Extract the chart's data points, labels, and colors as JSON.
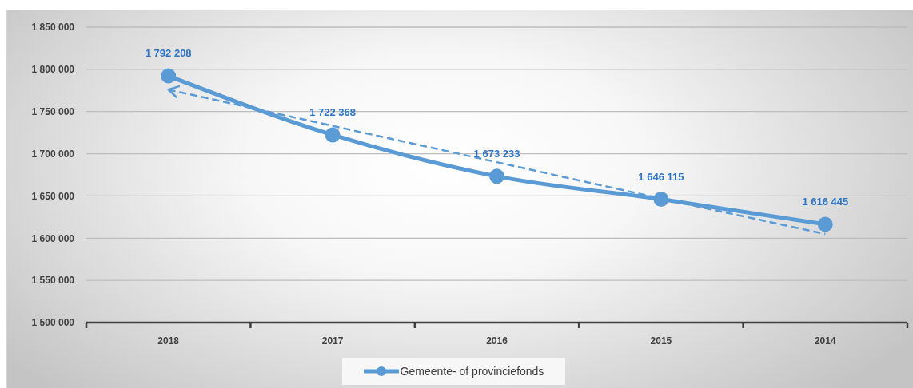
{
  "chart_data": {
    "type": "line",
    "categories": [
      "2018",
      "2017",
      "2016",
      "2015",
      "2014"
    ],
    "series": [
      {
        "name": "Gemeente- of provinciefonds",
        "color": "#5b9bd5",
        "values": [
          1792208,
          1722368,
          1673233,
          1646115,
          1616445
        ],
        "value_labels": [
          "1 792 208",
          "1 722 368",
          "1 673 233",
          "1 646 115",
          "1 616 445"
        ],
        "marker": "circle",
        "line_style": "solid"
      },
      {
        "type": "line",
        "color": "#5b9bd5",
        "values": [
          1776000,
          1733000,
          1690000,
          1647000,
          1605000
        ],
        "marker": "none",
        "line_style": "dashed"
      }
    ],
    "ylim": [
      1500000,
      1850000
    ],
    "yticks": [
      {
        "value": 1500000,
        "label": "1 500 000"
      },
      {
        "value": 1550000,
        "label": "1 550 000"
      },
      {
        "value": 1600000,
        "label": "1 600 000"
      },
      {
        "value": 1650000,
        "label": "1 650 000"
      },
      {
        "value": 1700000,
        "label": "1 700 000"
      },
      {
        "value": 1750000,
        "label": "1 750 000"
      },
      {
        "value": 1800000,
        "label": "1 800 000"
      },
      {
        "value": 1850000,
        "label": "1 850 000"
      }
    ],
    "grid": "y",
    "legend": "bottom"
  }
}
